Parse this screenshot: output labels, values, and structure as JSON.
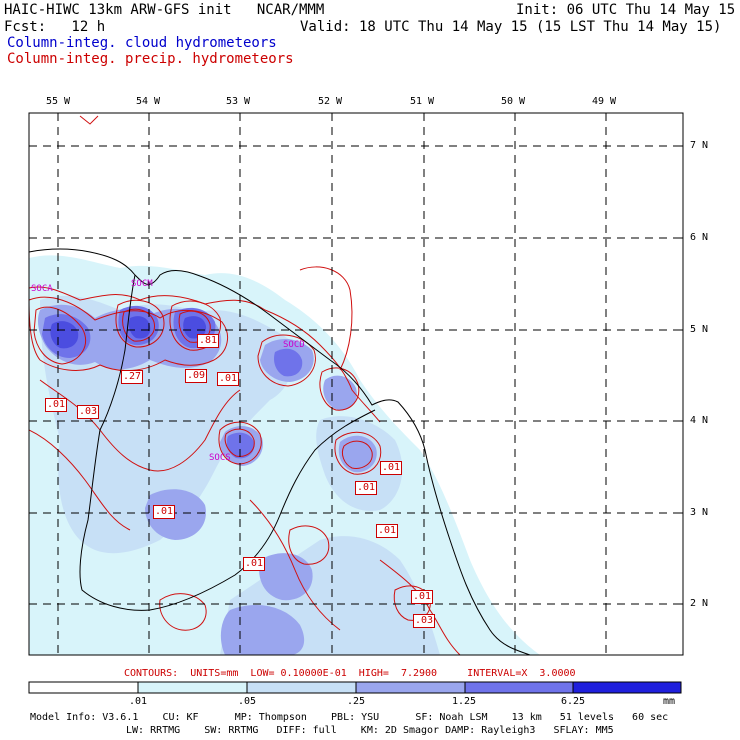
{
  "header": {
    "title_left": "HAIC-HIWC 13km ARW-GFS init   NCAR/MMM",
    "init": "Init: 06 UTC Thu 14 May 15",
    "fcst": "Fcst:   12 h",
    "valid": "Valid: 18 UTC Thu 14 May 15 (15 LST Thu 14 May 15)",
    "legend_cloud": "Column-integ. cloud hydrometeors",
    "legend_precip": "Column-integ. precip. hydrometeors"
  },
  "colors": {
    "cloud_shade_1": "#d8f4fa",
    "cloud_shade_2": "#c7e0f6",
    "cloud_shade_3": "#9aa6ee",
    "cloud_shade_4": "#6f73ea",
    "cloud_shade_5": "#4b4de0",
    "cloud_shade_6": "#1f1fdc",
    "precip_contour": "#d01010",
    "label_magenta": "#cc00cc"
  },
  "map": {
    "lon_labels": [
      "55 W",
      "54 W",
      "53 W",
      "52 W",
      "51 W",
      "50 W",
      "49 W"
    ],
    "lat_labels": [
      "7 N",
      "6 N",
      "5 N",
      "4 N",
      "3 N",
      "2 N"
    ],
    "contour_labels": [
      ".81",
      ".27",
      ".09",
      ".01",
      ".01",
      ".03",
      ".01",
      ".01",
      ".01",
      ".01",
      ".01",
      ".01",
      ".03"
    ],
    "station_labels": [
      "SOCA",
      "SOCM",
      "SOCD",
      "SOCS"
    ]
  },
  "footer": {
    "contours_info": "CONTOURS:  UNITS=mm  LOW= 0.10000E-01  HIGH=  7.2900     INTERVAL=X  3.0000",
    "colorbar_ticks": [
      ".01",
      ".05",
      ".25",
      "1.25",
      "6.25"
    ],
    "colorbar_units": "mm",
    "model_line1": "Model Info: V3.6.1    CU: KF      MP: Thompson    PBL: YSU      SF: Noah LSM    13 km   51 levels   60 sec",
    "model_line2": "LW: RRTMG    SW: RRTMG   DIFF: full    KM: 2D Smagor DAMP: Rayleigh3   SFLAY: MM5"
  }
}
